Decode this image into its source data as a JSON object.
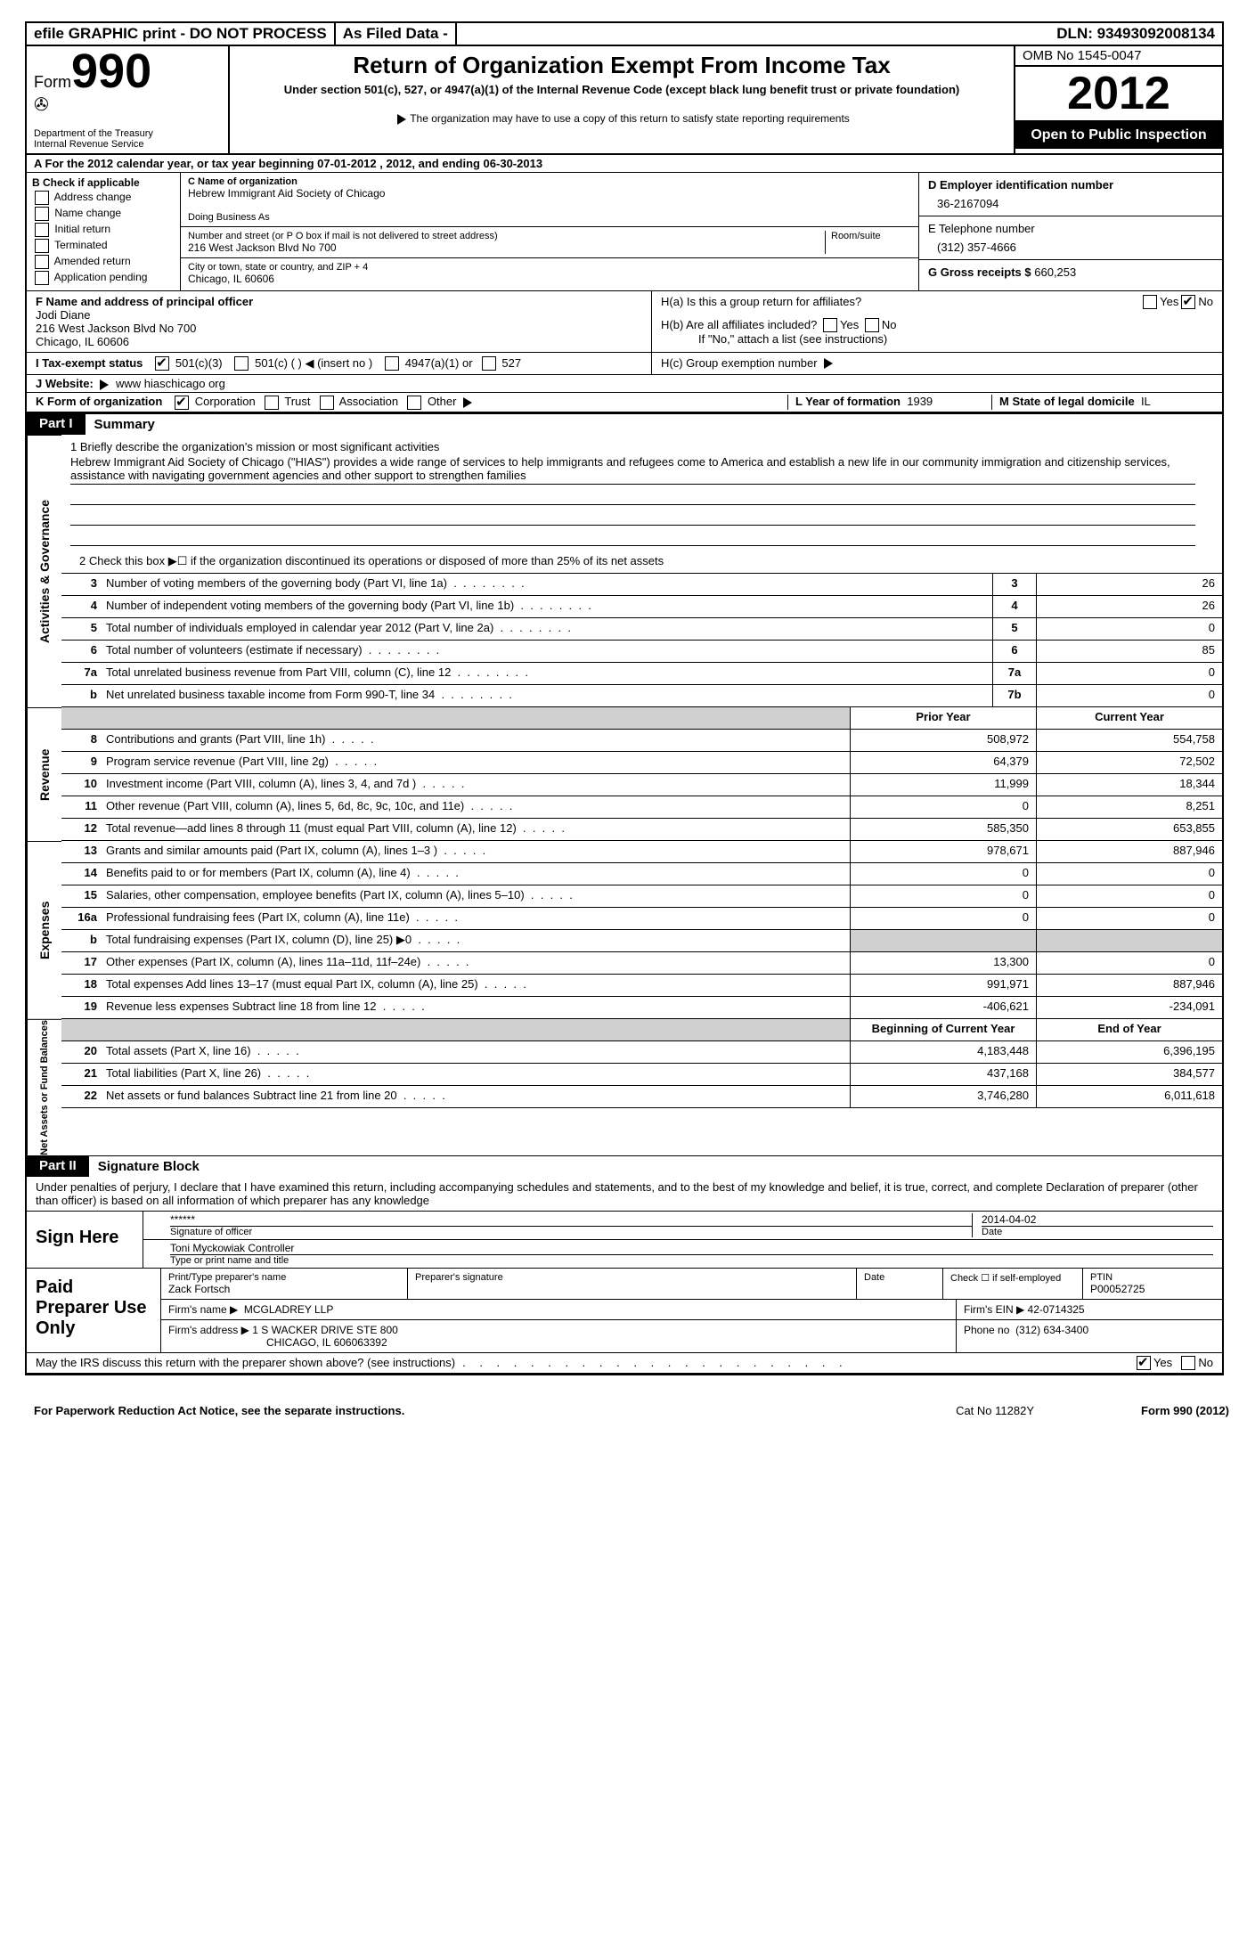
{
  "topbar": {
    "efile": "efile GRAPHIC print - DO NOT PROCESS",
    "asfiled": "As Filed Data -",
    "dln_label": "DLN:",
    "dln": "93493092008134"
  },
  "header": {
    "form_label": "Form",
    "form_num": "990",
    "dept1": "Department of the Treasury",
    "dept2": "Internal Revenue Service",
    "title": "Return of Organization Exempt From Income Tax",
    "sub": "Under section 501(c), 527, or 4947(a)(1) of the Internal Revenue Code (except black lung benefit trust or private foundation)",
    "note": "The organization may have to use a copy of this return to satisfy state reporting requirements",
    "omb": "OMB No 1545-0047",
    "year": "2012",
    "inspect": "Open to Public Inspection"
  },
  "row_a": "A For the 2012 calendar year, or tax year beginning 07-01-2012   , 2012, and ending 06-30-2013",
  "section_b": {
    "label": "B Check if applicable",
    "items": [
      "Address change",
      "Name change",
      "Initial return",
      "Terminated",
      "Amended return",
      "Application pending"
    ]
  },
  "section_c": {
    "name_label": "C Name of organization",
    "name": "Hebrew Immigrant Aid Society of Chicago",
    "dba_label": "Doing Business As",
    "street_label": "Number and street (or P O  box if mail is not delivered to street address)",
    "room_label": "Room/suite",
    "street": "216 West Jackson Blvd No 700",
    "city_label": "City or town, state or country, and ZIP + 4",
    "city": "Chicago, IL  60606"
  },
  "section_d": {
    "label": "D Employer identification number",
    "ein": "36-2167094",
    "tel_label": "E Telephone number",
    "tel": "(312) 357-4666",
    "gross_label": "G Gross receipts $",
    "gross": "660,253"
  },
  "section_f": {
    "label": "F   Name and address of principal officer",
    "name": "Jodi Diane",
    "addr1": "216 West Jackson Blvd No 700",
    "addr2": "Chicago, IL  60606"
  },
  "section_h": {
    "ha": "H(a)  Is this a group return for affiliates?",
    "hb": "H(b)  Are all affiliates included?",
    "hb_note": "If \"No,\" attach a list  (see instructions)",
    "hc": "H(c)   Group exemption number"
  },
  "tax_status": {
    "label": "I   Tax-exempt status",
    "opts": [
      "501(c)(3)",
      "501(c) (  )",
      "(insert no )",
      "4947(a)(1) or",
      "527"
    ]
  },
  "website": {
    "label": "J  Website:",
    "value": "www hiaschicago org"
  },
  "row_k": {
    "label": "K Form of organization",
    "opts": [
      "Corporation",
      "Trust",
      "Association",
      "Other"
    ],
    "l_label": "L Year of formation",
    "l_val": "1939",
    "m_label": "M State of legal domicile",
    "m_val": "IL"
  },
  "part1": {
    "num": "Part I",
    "title": "Summary"
  },
  "side_labels": {
    "gov": "Activities & Governance",
    "rev": "Revenue",
    "exp": "Expenses",
    "net": "Net Assets or Fund Balances"
  },
  "mission": {
    "q": "1   Briefly describe the organization's mission or most significant activities",
    "text": "Hebrew Immigrant Aid Society of Chicago (\"HIAS\") provides a wide range of services to help immigrants and refugees come to America and establish a new life in our community  immigration and citizenship services, assistance with navigating government agencies and other support to strengthen families"
  },
  "line2": "2   Check this box ▶☐ if the organization discontinued its operations or disposed of more than 25% of its net assets",
  "gov_rows": [
    {
      "n": "3",
      "d": "Number of voting members of the governing body (Part VI, line 1a)",
      "b": "3",
      "v": "26"
    },
    {
      "n": "4",
      "d": "Number of independent voting members of the governing body (Part VI, line 1b)",
      "b": "4",
      "v": "26"
    },
    {
      "n": "5",
      "d": "Total number of individuals employed in calendar year 2012 (Part V, line 2a)",
      "b": "5",
      "v": "0"
    },
    {
      "n": "6",
      "d": "Total number of volunteers (estimate if necessary)",
      "b": "6",
      "v": "85"
    },
    {
      "n": "7a",
      "d": "Total unrelated business revenue from Part VIII, column (C), line 12",
      "b": "7a",
      "v": "0"
    },
    {
      "n": "b",
      "d": "Net unrelated business taxable income from Form 990-T, line 34",
      "b": "7b",
      "v": "0"
    }
  ],
  "col_hdrs": {
    "prior": "Prior Year",
    "current": "Current Year"
  },
  "rev_rows": [
    {
      "n": "8",
      "d": "Contributions and grants (Part VIII, line 1h)",
      "p": "508,972",
      "c": "554,758"
    },
    {
      "n": "9",
      "d": "Program service revenue (Part VIII, line 2g)",
      "p": "64,379",
      "c": "72,502"
    },
    {
      "n": "10",
      "d": "Investment income (Part VIII, column (A), lines 3, 4, and 7d )",
      "p": "11,999",
      "c": "18,344"
    },
    {
      "n": "11",
      "d": "Other revenue (Part VIII, column (A), lines 5, 6d, 8c, 9c, 10c, and 11e)",
      "p": "0",
      "c": "8,251"
    },
    {
      "n": "12",
      "d": "Total revenue—add lines 8 through 11 (must equal Part VIII, column (A), line 12)",
      "p": "585,350",
      "c": "653,855"
    }
  ],
  "exp_rows": [
    {
      "n": "13",
      "d": "Grants and similar amounts paid (Part IX, column (A), lines 1–3 )",
      "p": "978,671",
      "c": "887,946"
    },
    {
      "n": "14",
      "d": "Benefits paid to or for members (Part IX, column (A), line 4)",
      "p": "0",
      "c": "0"
    },
    {
      "n": "15",
      "d": "Salaries, other compensation, employee benefits (Part IX, column (A), lines 5–10)",
      "p": "0",
      "c": "0"
    },
    {
      "n": "16a",
      "d": "Professional fundraising fees (Part IX, column (A), line 11e)",
      "p": "0",
      "c": "0"
    },
    {
      "n": "b",
      "d": "Total fundraising expenses (Part IX, column (D), line 25) ▶0",
      "p": "",
      "c": "",
      "shade": true
    },
    {
      "n": "17",
      "d": "Other expenses (Part IX, column (A), lines 11a–11d, 11f–24e)",
      "p": "13,300",
      "c": "0"
    },
    {
      "n": "18",
      "d": "Total expenses  Add lines 13–17 (must equal Part IX, column (A), line 25)",
      "p": "991,971",
      "c": "887,946"
    },
    {
      "n": "19",
      "d": "Revenue less expenses  Subtract line 18 from line 12",
      "p": "-406,621",
      "c": "-234,091"
    }
  ],
  "net_hdrs": {
    "begin": "Beginning of Current Year",
    "end": "End of Year"
  },
  "net_rows": [
    {
      "n": "20",
      "d": "Total assets (Part X, line 16)",
      "p": "4,183,448",
      "c": "6,396,195"
    },
    {
      "n": "21",
      "d": "Total liabilities (Part X, line 26)",
      "p": "437,168",
      "c": "384,577"
    },
    {
      "n": "22",
      "d": "Net assets or fund balances  Subtract line 21 from line 20",
      "p": "3,746,280",
      "c": "6,011,618"
    }
  ],
  "part2": {
    "num": "Part II",
    "title": "Signature Block"
  },
  "perjury": "Under penalties of perjury, I declare that I have examined this return, including accompanying schedules and statements, and to the best of my knowledge and belief, it is true, correct, and complete  Declaration of preparer (other than officer) is based on all information of which preparer has any knowledge",
  "sign": {
    "here": "Sign Here",
    "stars": "******",
    "sig_label": "Signature of officer",
    "date": "2014-04-02",
    "date_label": "Date",
    "name": "Toni Myckowiak Controller",
    "name_label": "Type or print name and title"
  },
  "prep": {
    "label": "Paid Preparer Use Only",
    "name_label": "Print/Type preparer's name",
    "name": "Zack Fortsch",
    "sig_label": "Preparer's signature",
    "date_label": "Date",
    "self_label": "Check ☐ if self-employed",
    "ptin_label": "PTIN",
    "ptin": "P00052725",
    "firm_label": "Firm's name  ▶",
    "firm": "MCGLADREY LLP",
    "ein_label": "Firm's EIN ▶",
    "ein": "42-0714325",
    "addr_label": "Firm's address ▶",
    "addr1": "1 S WACKER DRIVE STE 800",
    "addr2": "CHICAGO, IL  606063392",
    "phone_label": "Phone no",
    "phone": "(312) 634-3400"
  },
  "discuss": "May the IRS discuss this return with the preparer shown above? (see instructions)",
  "footer": {
    "left": "For Paperwork Reduction Act Notice, see the separate instructions.",
    "cat": "Cat No 11282Y",
    "right": "Form 990 (2012)"
  }
}
